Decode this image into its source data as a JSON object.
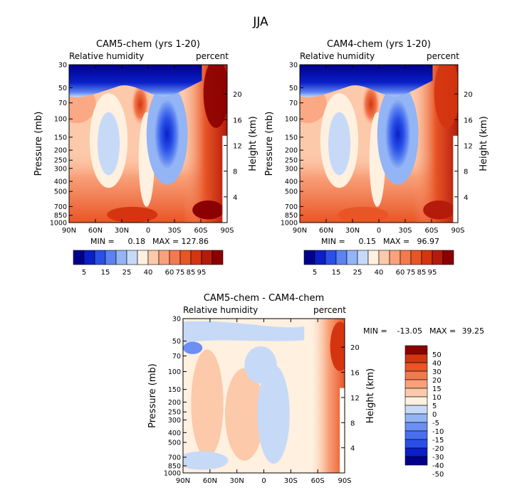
{
  "page_title": "JJA",
  "colors": {
    "seq": [
      "#00008b",
      "#0a1fc8",
      "#2a4fe8",
      "#5b82f0",
      "#93b4f5",
      "#c6daf8",
      "#fff0e0",
      "#fcc9aa",
      "#f9a17a",
      "#f37a4f",
      "#e85526",
      "#d43510",
      "#b41b0b",
      "#8b0000"
    ],
    "diff": [
      "#00008b",
      "#0a1fc8",
      "#2a4fe8",
      "#4a6ef0",
      "#6b8ff2",
      "#93b4f5",
      "#c6daf8",
      "#fff0e0",
      "#fcc9aa",
      "#f9a17a",
      "#f37a4f",
      "#e85526",
      "#d43510",
      "#8b0000"
    ]
  },
  "chart_data": [
    {
      "type": "heatmap",
      "title": "CAM5-chem (yrs 1-20)",
      "left_label": "Relative humidity",
      "right_label": "percent",
      "ylabel": "Pressure (mb)",
      "y2label": "Height (km)",
      "xticks": [
        "90N",
        "60N",
        "30N",
        "0",
        "30S",
        "60S",
        "90S"
      ],
      "yticks": [
        "30",
        "50",
        "70",
        "100",
        "150",
        "200",
        "250",
        "300",
        "400",
        "500",
        "700",
        "850",
        "1000"
      ],
      "y2ticks": [
        "20",
        "16",
        "12",
        "8",
        "4"
      ],
      "stats": "MIN =    0.18   MAX = 127.86",
      "stats_min": "0.18",
      "stats_max": "127.86",
      "legend_levels": [
        "5",
        "15",
        "25",
        "40",
        "60",
        "75",
        "85",
        "95"
      ]
    },
    {
      "type": "heatmap",
      "title": "CAM4-chem (yrs 1-20)",
      "left_label": "Relative humidity",
      "right_label": "percent",
      "ylabel": "Pressure (mb)",
      "y2label": "Height (km)",
      "xticks": [
        "90N",
        "60N",
        "30N",
        "0",
        "30S",
        "60S",
        "90S"
      ],
      "yticks": [
        "30",
        "50",
        "70",
        "100",
        "150",
        "200",
        "250",
        "300",
        "400",
        "500",
        "700",
        "850",
        "1000"
      ],
      "y2ticks": [
        "20",
        "16",
        "12",
        "8",
        "4"
      ],
      "stats": "MIN =    0.15   MAX =  96.97",
      "stats_min": "0.15",
      "stats_max": "96.97",
      "legend_levels": [
        "5",
        "15",
        "25",
        "40",
        "60",
        "75",
        "85",
        "95"
      ]
    },
    {
      "type": "heatmap",
      "title": "CAM5-chem - CAM4-chem",
      "left_label": "Relative humidity",
      "right_label": "percent",
      "ylabel": "Pressure (mb)",
      "y2label": "Height (km)",
      "xticks": [
        "90N",
        "60N",
        "30N",
        "0",
        "30S",
        "60S",
        "90S"
      ],
      "yticks": [
        "30",
        "50",
        "70",
        "100",
        "150",
        "200",
        "250",
        "300",
        "400",
        "500",
        "700",
        "850",
        "1000"
      ],
      "y2ticks": [
        "20",
        "16",
        "12",
        "8",
        "4"
      ],
      "stats": "MIN = -13.05   MAX =  39.25",
      "stats_min": "-13.05",
      "stats_max": "39.25",
      "legend_levels": [
        "50",
        "40",
        "30",
        "20",
        "15",
        "10",
        "5",
        "0",
        "-5",
        "-10",
        "-15",
        "-20",
        "-30",
        "-40",
        "-50"
      ]
    }
  ]
}
